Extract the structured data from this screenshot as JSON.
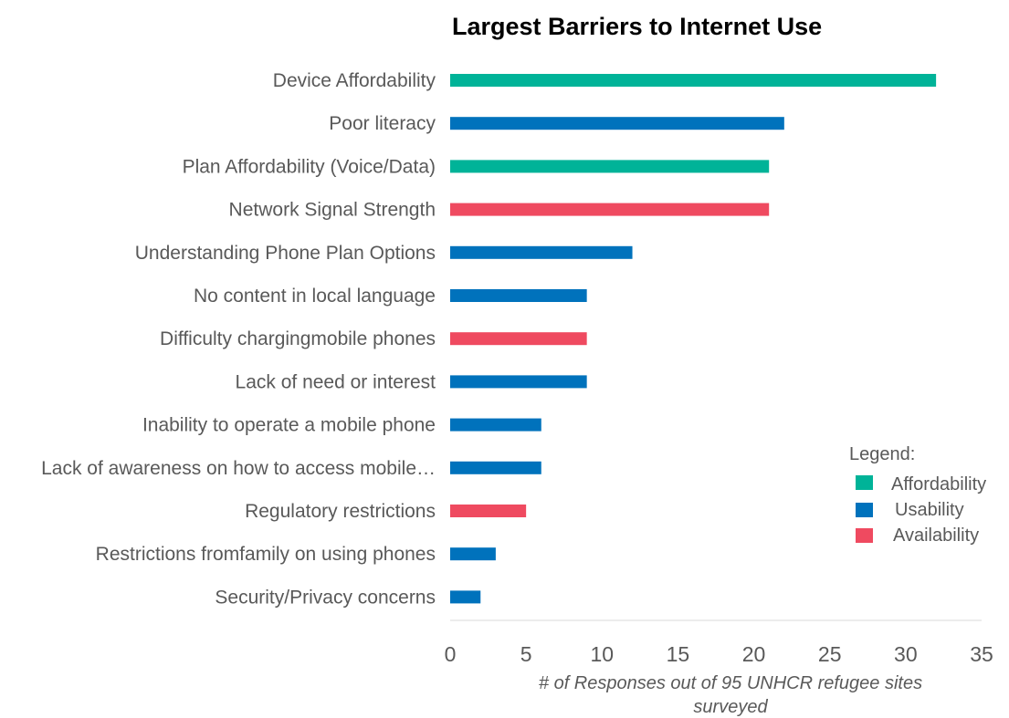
{
  "colors": {
    "affordability": "#00B398",
    "usability": "#0072BC",
    "availability": "#EF4A60",
    "text": "#595959",
    "axis": "#d9d9d9"
  },
  "chart_data": {
    "type": "bar",
    "orientation": "horizontal",
    "title": "Largest Barriers to Internet Use",
    "xlabel_lines": [
      "# of Responses out of 95 UNHCR refugee sites",
      "surveyed"
    ],
    "ylabel": "",
    "xlim": [
      0,
      35
    ],
    "xticks": [
      0,
      5,
      10,
      15,
      20,
      25,
      30,
      35
    ],
    "grid": false,
    "categories": [
      "Device Affordability",
      "Poor literacy",
      "Plan Affordability (Voice/Data)",
      "Network Signal Strength",
      "Understanding Phone Plan Options",
      "No content in local language",
      "Difficulty chargingmobile phones",
      "Lack of need or interest",
      "Inability to operate a mobile phone",
      "Lack of awareness on how to access mobile…",
      "Regulatory restrictions",
      "Restrictions fromfamily on using phones",
      "Security/Privacy concerns"
    ],
    "values": [
      32,
      22,
      21,
      21,
      12,
      9,
      9,
      9,
      6,
      6,
      5,
      3,
      2
    ],
    "groups": [
      "affordability",
      "usability",
      "affordability",
      "availability",
      "usability",
      "usability",
      "availability",
      "usability",
      "usability",
      "usability",
      "availability",
      "usability",
      "usability"
    ],
    "legend": {
      "title": "Legend:",
      "position": "right",
      "entries": [
        {
          "key": "affordability",
          "label": "Affordability"
        },
        {
          "key": "usability",
          "label": "Usability"
        },
        {
          "key": "availability",
          "label": "Availability"
        }
      ]
    }
  }
}
